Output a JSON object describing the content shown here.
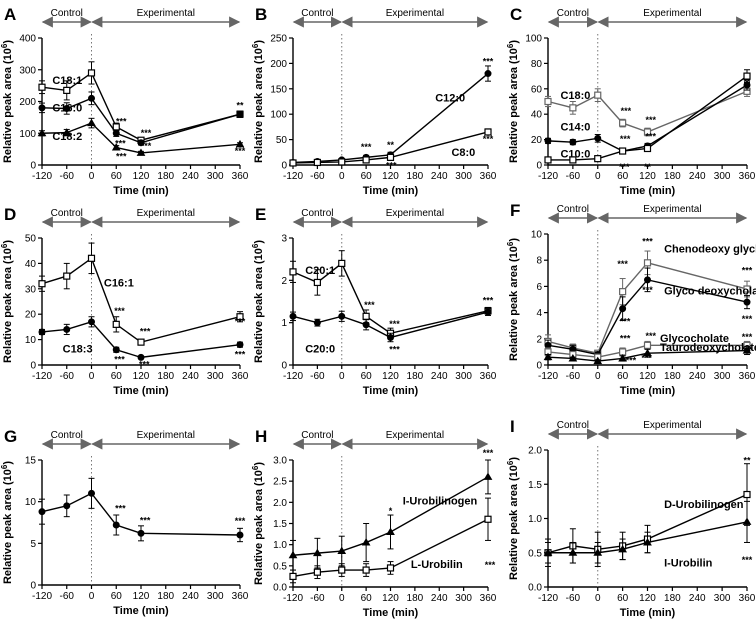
{
  "figure": {
    "xlabel": "Time (min)",
    "ylabel": "Relative peak area (10",
    "ylabel_sup": "6",
    "ylabel_end": ")"
  },
  "chart_data": [
    {
      "id": "A",
      "type": "line",
      "control_label": "Control",
      "experimental_label": "Experimental",
      "xlabel": "Time (min)",
      "ylabel": "Relative peak area (10^6)",
      "x": [
        -120,
        -60,
        0,
        60,
        120,
        360
      ],
      "xticks": [
        -120,
        -60,
        0,
        60,
        120,
        180,
        240,
        300,
        360
      ],
      "ylim": [
        0,
        400
      ],
      "yticks": [
        0,
        100,
        200,
        300,
        400
      ],
      "series": [
        {
          "name": "C18:1",
          "values": [
            245,
            235,
            290,
            120,
            78,
            160
          ],
          "errors": [
            20,
            30,
            35,
            12,
            8,
            10
          ],
          "marker": "open",
          "label_x": -95,
          "label_y": 255
        },
        {
          "name": "C16:0",
          "values": [
            180,
            178,
            210,
            100,
            70,
            160
          ],
          "errors": [
            15,
            18,
            20,
            10,
            7,
            10
          ],
          "marker": "filled",
          "label_x": -95,
          "label_y": 168
        },
        {
          "name": "C18:2",
          "values": [
            100,
            102,
            132,
            55,
            38,
            65
          ],
          "errors": [
            8,
            10,
            15,
            6,
            5,
            5
          ],
          "marker": "filled-triangle",
          "label_x": -95,
          "label_y": 78
        }
      ],
      "annotations": [
        {
          "text": "***",
          "x": 72,
          "y": 128
        },
        {
          "text": "***",
          "x": 132,
          "y": 92
        },
        {
          "text": "***",
          "x": 132,
          "y": 50
        },
        {
          "text": "***",
          "x": 70,
          "y": 58
        },
        {
          "text": "***",
          "x": 72,
          "y": 18
        },
        {
          "text": "**",
          "x": 360,
          "y": 178
        },
        {
          "text": "***",
          "x": 360,
          "y": 35
        }
      ]
    },
    {
      "id": "B",
      "type": "line",
      "control_label": "Control",
      "experimental_label": "Experimental",
      "xlabel": "Time (min)",
      "ylabel": "Relative peak area (10^6)",
      "x": [
        -120,
        -60,
        0,
        60,
        120,
        360
      ],
      "xticks": [
        -120,
        -60,
        0,
        60,
        120,
        180,
        240,
        300,
        360
      ],
      "ylim": [
        0,
        250
      ],
      "yticks": [
        0,
        50,
        100,
        150,
        200,
        250
      ],
      "series": [
        {
          "name": "C12:0",
          "values": [
            5,
            7,
            10,
            15,
            20,
            180
          ],
          "errors": [
            2,
            2,
            3,
            4,
            5,
            15
          ],
          "marker": "filled",
          "label_x": 230,
          "label_y": 125
        },
        {
          "name": "C8:0",
          "values": [
            4,
            5,
            6,
            10,
            15,
            65
          ],
          "errors": [
            1,
            1,
            2,
            3,
            4,
            6
          ],
          "marker": "open",
          "label_x": 270,
          "label_y": 18
        }
      ],
      "annotations": [
        {
          "text": "***",
          "x": 60,
          "y": 30
        },
        {
          "text": "**",
          "x": 120,
          "y": 33
        },
        {
          "text": "***",
          "x": 122,
          "y": -7
        },
        {
          "text": "***",
          "x": 360,
          "y": 198
        },
        {
          "text": "***",
          "x": 360,
          "y": 45
        }
      ]
    },
    {
      "id": "C",
      "type": "line",
      "control_label": "Control",
      "experimental_label": "Experimental",
      "xlabel": "Time (min)",
      "ylabel": "Relative peak area (10^6)",
      "x": [
        -120,
        -60,
        0,
        60,
        120,
        360
      ],
      "xticks": [
        -120,
        -60,
        0,
        60,
        120,
        180,
        240,
        300,
        360
      ],
      "ylim": [
        0,
        100
      ],
      "yticks": [
        0,
        20,
        40,
        60,
        80,
        100
      ],
      "series": [
        {
          "name": "C18:0",
          "values": [
            50,
            45,
            55,
            33,
            26,
            58
          ],
          "errors": [
            4,
            5,
            5,
            3,
            3,
            4
          ],
          "marker": "open-gray",
          "label_x": -90,
          "label_y": 52
        },
        {
          "name": "C14:0",
          "values": [
            19,
            18,
            21,
            11,
            15,
            63
          ],
          "errors": [
            2,
            2,
            3,
            2,
            2,
            4
          ],
          "marker": "filled",
          "label_x": -90,
          "label_y": 27
        },
        {
          "name": "C10:0",
          "values": [
            4,
            4,
            5,
            11,
            13,
            70
          ],
          "errors": [
            1,
            1,
            1,
            2,
            2,
            5
          ],
          "marker": "open",
          "label_x": -90,
          "label_y": 6
        }
      ],
      "annotations": [
        {
          "text": "***",
          "x": 68,
          "y": 40
        },
        {
          "text": "***",
          "x": 128,
          "y": 33
        },
        {
          "text": "***",
          "x": 66,
          "y": 18
        },
        {
          "text": "***",
          "x": 128,
          "y": 20
        },
        {
          "text": "***",
          "x": 64,
          "y": -4
        },
        {
          "text": "**",
          "x": 120,
          "y": -4
        },
        {
          "text": "**",
          "x": 360,
          "y": 63
        }
      ]
    },
    {
      "id": "D",
      "type": "line",
      "control_label": "Control",
      "experimental_label": "Experimental",
      "xlabel": "Time (min)",
      "ylabel": "Relative peak area (10^6)",
      "x": [
        -120,
        -60,
        0,
        60,
        120,
        360
      ],
      "xticks": [
        -120,
        -60,
        0,
        60,
        120,
        180,
        240,
        300,
        360
      ],
      "ylim": [
        0,
        50
      ],
      "yticks": [
        0,
        10,
        20,
        30,
        40,
        50
      ],
      "series": [
        {
          "name": "C16:1",
          "values": [
            32,
            35,
            42,
            16,
            9,
            19
          ],
          "errors": [
            3,
            5,
            6,
            3,
            1,
            2
          ],
          "marker": "open",
          "label_x": 30,
          "label_y": 31
        },
        {
          "name": "C18:3",
          "values": [
            13,
            14,
            17,
            6,
            3,
            8
          ],
          "errors": [
            1,
            2,
            2,
            1,
            0.5,
            1
          ],
          "marker": "filled",
          "label_x": -70,
          "label_y": 5
        }
      ],
      "annotations": [
        {
          "text": "***",
          "x": 68,
          "y": 20
        },
        {
          "text": "***",
          "x": 130,
          "y": 12
        },
        {
          "text": "***",
          "x": 68,
          "y": 1
        },
        {
          "text": "***",
          "x": 128,
          "y": -1
        },
        {
          "text": "***",
          "x": 360,
          "y": 16
        },
        {
          "text": "***",
          "x": 360,
          "y": 3
        }
      ]
    },
    {
      "id": "E",
      "type": "line",
      "control_label": "Control",
      "experimental_label": "Experimental",
      "xlabel": "Time (min)",
      "ylabel": "Relative peak area (10^6)",
      "x": [
        -120,
        -60,
        0,
        60,
        120,
        360
      ],
      "xticks": [
        -120,
        -60,
        0,
        60,
        120,
        180,
        240,
        300,
        360
      ],
      "ylim": [
        0,
        3.0
      ],
      "yticks": [
        0,
        1.0,
        2.0,
        3.0
      ],
      "series": [
        {
          "name": "C20:1",
          "values": [
            2.2,
            1.95,
            2.4,
            1.15,
            0.75,
            1.28
          ],
          "errors": [
            0.25,
            0.3,
            0.3,
            0.15,
            0.12,
            0.08
          ],
          "marker": "open",
          "label_x": -90,
          "label_y": 2.15
        },
        {
          "name": "C20:0",
          "values": [
            1.15,
            1.0,
            1.15,
            0.95,
            0.65,
            1.25
          ],
          "errors": [
            0.1,
            0.08,
            0.12,
            0.12,
            0.1,
            0.08
          ],
          "marker": "filled",
          "label_x": -90,
          "label_y": 0.3
        }
      ],
      "annotations": [
        {
          "text": "***",
          "x": 68,
          "y": 1.35
        },
        {
          "text": "***",
          "x": 130,
          "y": 0.9
        },
        {
          "text": "***",
          "x": 130,
          "y": 0.3
        },
        {
          "text": "***",
          "x": 360,
          "y": 1.45
        }
      ]
    },
    {
      "id": "F",
      "type": "line",
      "control_label": "Control",
      "experimental_label": "Experimental",
      "xlabel": "Time (min)",
      "ylabel": "Relative peak area (10^6)",
      "x": [
        -120,
        -60,
        0,
        60,
        120,
        360
      ],
      "xticks": [
        -120,
        -60,
        0,
        60,
        120,
        180,
        240,
        300,
        360
      ],
      "ylim": [
        0,
        10.0
      ],
      "yticks": [
        0,
        2.0,
        4.0,
        6.0,
        8.0,
        10.0
      ],
      "series": [
        {
          "name": "Chenodeoxy glycholate",
          "values": [
            1.8,
            1.3,
            0.9,
            5.6,
            7.8,
            5.8
          ],
          "errors": [
            0.5,
            0.3,
            0.2,
            1.0,
            0.9,
            0.6
          ],
          "marker": "open-gray",
          "label_x": 160,
          "label_y": 8.6
        },
        {
          "name": "Glyco deoxycholate",
          "values": [
            1.5,
            1.2,
            0.8,
            4.3,
            6.5,
            4.8
          ],
          "errors": [
            0.4,
            0.3,
            0.2,
            0.9,
            0.9,
            0.5
          ],
          "marker": "filled",
          "label_x": 160,
          "label_y": 5.4
        },
        {
          "name": "Glycocholate",
          "values": [
            1.0,
            0.8,
            0.6,
            1.0,
            1.5,
            1.5
          ],
          "errors": [
            0.3,
            0.2,
            0.1,
            0.3,
            0.3,
            0.3
          ],
          "marker": "open-gray",
          "label_x": 150,
          "label_y": 1.75
        },
        {
          "name": "Taurodeoxycholate",
          "values": [
            0.6,
            0.5,
            0.3,
            0.5,
            0.9,
            1.1
          ],
          "errors": [
            0.2,
            0.1,
            0.1,
            0.2,
            0.3,
            0.3
          ],
          "marker": "filled-triangle",
          "label_x": 150,
          "label_y": 1.05
        }
      ],
      "annotations": [
        {
          "text": "***",
          "x": 60,
          "y": 7.5
        },
        {
          "text": "***",
          "x": 120,
          "y": 9.2
        },
        {
          "text": "***",
          "x": 120,
          "y": 5.5
        },
        {
          "text": "***",
          "x": 66,
          "y": 3.1
        },
        {
          "text": "***",
          "x": 66,
          "y": 1.8
        },
        {
          "text": "***",
          "x": 128,
          "y": 2.0
        },
        {
          "text": "***",
          "x": 118,
          "y": 0.3
        },
        {
          "text": "***",
          "x": 80,
          "y": 0.1
        },
        {
          "text": "***",
          "x": 360,
          "y": 7.0
        },
        {
          "text": "***",
          "x": 360,
          "y": 3.3
        },
        {
          "text": "***",
          "x": 360,
          "y": 1.9
        },
        {
          "text": "***",
          "x": 360,
          "y": 0.9
        }
      ]
    },
    {
      "id": "G",
      "type": "line",
      "control_label": "Control",
      "experimental_label": "Experimental",
      "xlabel": "Time (min)",
      "ylabel": "Relative peak area (10^6)",
      "x": [
        -120,
        -60,
        0,
        60,
        120,
        360
      ],
      "xticks": [
        -120,
        -60,
        0,
        60,
        120,
        180,
        240,
        300,
        360
      ],
      "ylim": [
        0,
        15
      ],
      "yticks": [
        0,
        5,
        10,
        15
      ],
      "series": [
        {
          "name": "",
          "values": [
            8.8,
            9.5,
            11.0,
            7.2,
            6.2,
            6.0
          ],
          "errors": [
            1.5,
            1.3,
            1.8,
            1.2,
            0.9,
            0.8
          ],
          "marker": "filled"
        }
      ],
      "annotations": [
        {
          "text": "***",
          "x": 70,
          "y": 8.8
        },
        {
          "text": "***",
          "x": 130,
          "y": 7.4
        },
        {
          "text": "***",
          "x": 360,
          "y": 7.3
        }
      ]
    },
    {
      "id": "H",
      "type": "line",
      "control_label": "Control",
      "experimental_label": "Experimental",
      "xlabel": "Time (min)",
      "ylabel": "Relative peak area (10^6)",
      "x": [
        -120,
        -60,
        0,
        60,
        120,
        360
      ],
      "xticks": [
        -120,
        -60,
        0,
        60,
        120,
        180,
        240,
        300,
        360
      ],
      "ylim": [
        0,
        3.0
      ],
      "yticks": [
        0,
        0.5,
        1.0,
        1.5,
        2.0,
        2.5,
        3.0
      ],
      "series": [
        {
          "name": "I-Urobilinogen",
          "values": [
            0.75,
            0.8,
            0.85,
            1.05,
            1.3,
            2.6
          ],
          "errors": [
            0.35,
            0.35,
            0.35,
            0.45,
            0.4,
            0.4
          ],
          "marker": "filled-triangle",
          "label_x": 150,
          "label_y": 1.95
        },
        {
          "name": "L-Urobilin",
          "values": [
            0.25,
            0.35,
            0.4,
            0.4,
            0.45,
            1.6
          ],
          "errors": [
            0.15,
            0.15,
            0.15,
            0.15,
            0.15,
            0.5
          ],
          "marker": "open",
          "label_x": 170,
          "label_y": 0.45
        }
      ],
      "annotations": [
        {
          "text": "*",
          "x": 120,
          "y": 1.72
        },
        {
          "text": "***",
          "x": 360,
          "y": 3.1
        },
        {
          "text": "***",
          "x": 365,
          "y": 0.45
        }
      ]
    },
    {
      "id": "I",
      "type": "line",
      "control_label": "Control",
      "experimental_label": "Experimental",
      "xlabel": "Time (min)",
      "ylabel": "Relative peak area (10^6)",
      "x": [
        -120,
        -60,
        0,
        60,
        120,
        360
      ],
      "xticks": [
        -120,
        -60,
        0,
        60,
        120,
        180,
        240,
        300,
        360
      ],
      "ylim": [
        0,
        2.0
      ],
      "yticks": [
        0,
        0.5,
        1.0,
        1.5,
        2.0
      ],
      "series": [
        {
          "name": "D-Urobilinogen",
          "values": [
            0.5,
            0.6,
            0.55,
            0.6,
            0.7,
            1.35
          ],
          "errors": [
            0.2,
            0.25,
            0.25,
            0.2,
            0.2,
            0.45
          ],
          "marker": "open",
          "label_x": 160,
          "label_y": 1.15
        },
        {
          "name": "I-Urobilin",
          "values": [
            0.5,
            0.5,
            0.5,
            0.55,
            0.65,
            0.95
          ],
          "errors": [
            0.15,
            0.15,
            0.15,
            0.15,
            0.15,
            0.3
          ],
          "marker": "filled-triangle",
          "label_x": 160,
          "label_y": 0.3
        }
      ],
      "annotations": [
        {
          "text": "**",
          "x": 360,
          "y": 1.8
        },
        {
          "text": "***",
          "x": 360,
          "y": 0.35
        }
      ]
    }
  ]
}
